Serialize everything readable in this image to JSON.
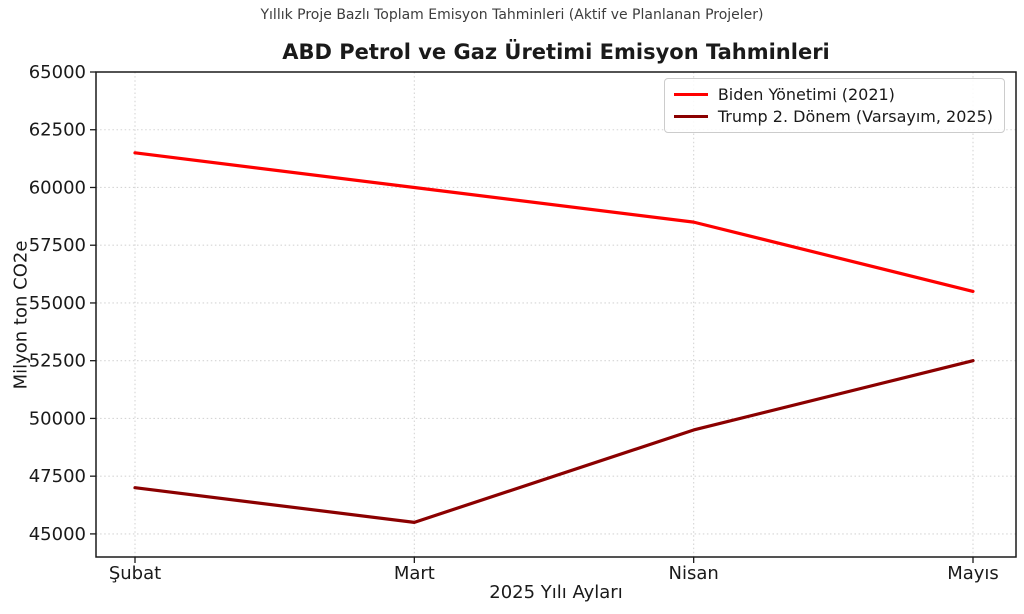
{
  "chart_data": {
    "type": "line",
    "suptitle": "Yıllık Proje Bazlı Toplam Emisyon Tahminleri (Aktif ve Planlanan Projeler)",
    "title": "ABD Petrol ve Gaz Üretimi Emisyon Tahminleri",
    "xlabel": "2025 Yılı Ayları",
    "ylabel": "Milyon ton CO2e",
    "categories": [
      "Şubat",
      "Mart",
      "Nisan",
      "Mayıs"
    ],
    "series": [
      {
        "name": "Biden Yönetimi (2021)",
        "color": "#ff0000",
        "values": [
          61500,
          60000,
          58500,
          55500
        ]
      },
      {
        "name": "Trump 2. Dönem (Varsayım, 2025)",
        "color": "#8b0000",
        "values": [
          47000,
          45500,
          49500,
          52500
        ]
      }
    ],
    "ylim": [
      44000,
      65000
    ],
    "yticks": [
      45000,
      47500,
      50000,
      52500,
      55000,
      57500,
      60000,
      62500,
      65000
    ],
    "grid": true,
    "grid_style": "dotted",
    "grid_color": "#d5d5d5",
    "axis_color": "#1a1a1a",
    "legend_position": "upper right",
    "line_width": 3.2
  }
}
